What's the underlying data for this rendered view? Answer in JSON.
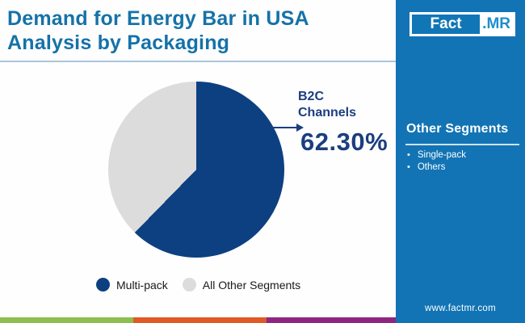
{
  "header": {
    "title_line1": "Demand for Energy Bar in USA",
    "title_line2": "Analysis by Packaging"
  },
  "brand": {
    "logo_text_left": "Fact",
    "logo_text_right": ".MR",
    "website": "www.factmr.com"
  },
  "sidebar": {
    "heading": "Other Segments",
    "items": [
      {
        "label": "Single-pack"
      },
      {
        "label": "Others"
      }
    ]
  },
  "chart_data": {
    "type": "pie",
    "title": "Demand for Energy Bar in USA Analysis by Packaging",
    "start_angle_deg": 0,
    "direction": "clockwise",
    "slices": [
      {
        "label": "Multi-pack",
        "value": 62.3,
        "color": "#0d4081"
      },
      {
        "label": "All Other Segments",
        "value": 37.7,
        "color": "#dcdcdc"
      }
    ],
    "callout": {
      "label_line1": "B2C",
      "label_line2": "Channels",
      "value_text": "62.30%"
    },
    "legend_position": "bottom"
  },
  "colors": {
    "title_blue": "#1572a8",
    "callout_blue": "#1b3e7e",
    "sidebar_blue": "#1274b4",
    "divider_light_blue": "#a9c5de",
    "stripe_green": "#8dbf4f",
    "stripe_orange": "#e05a25",
    "stripe_purple": "#8e2682"
  }
}
